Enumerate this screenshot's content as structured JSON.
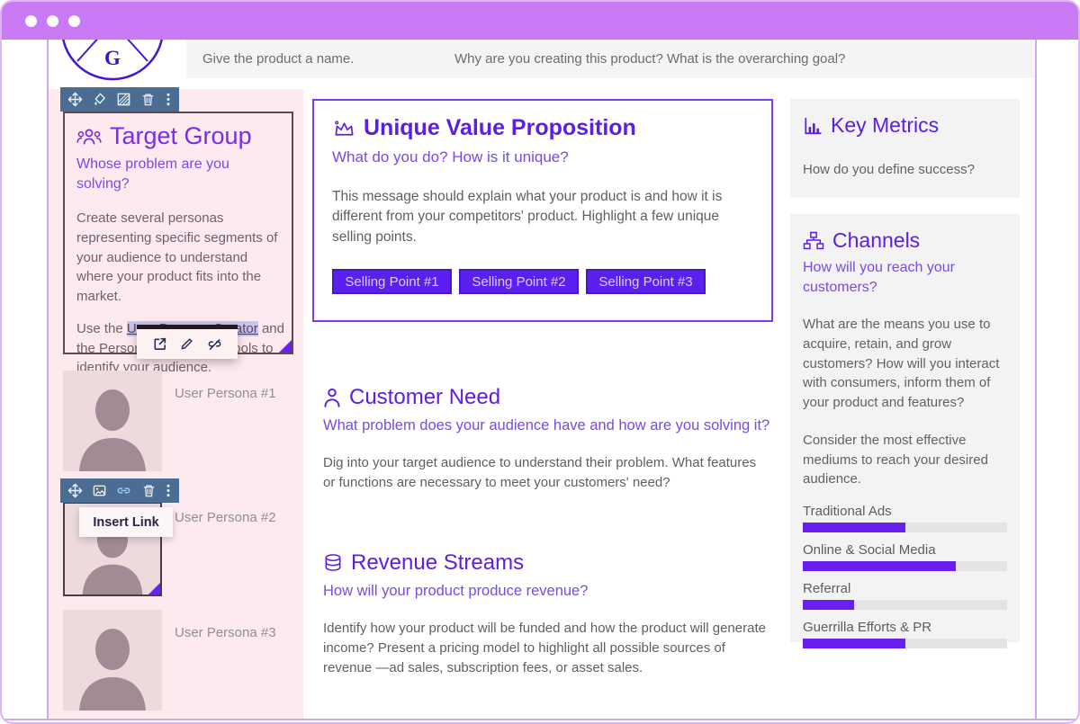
{
  "window": {
    "title_dots": 3
  },
  "header": {
    "logo_letter": "G",
    "product_name_placeholder": "Give the product a name.",
    "goal_placeholder": "Why are you creating this product? What is the overarching goal?"
  },
  "toolbars": {
    "section_toolbar_icons": [
      "move-icon",
      "fill-color-icon",
      "pattern-icon",
      "trash-icon",
      "more-icon"
    ],
    "image_toolbar_icons": [
      "move-icon",
      "image-icon",
      "link-icon",
      "trash-icon",
      "more-icon"
    ],
    "link_toolbar_icons": [
      "open-link-icon",
      "edit-link-icon",
      "unlink-icon"
    ],
    "insert_link_tooltip": "Insert Link"
  },
  "target_group": {
    "title": "Target Group",
    "subtitle": "Whose problem are you solving?",
    "paragraph1": "Create several personas representing specific segments of your audience to understand where your product fits into the market.",
    "paragraph2_prefix": "Use the ",
    "paragraph2_link": "User Persona Creator",
    "paragraph2_suffix": " and the Persona Comparison tools to identify your audience.",
    "personas": [
      "User Persona #1",
      "User Persona #2",
      "User Persona #3"
    ]
  },
  "unique_value_proposition": {
    "title": "Unique Value Proposition",
    "subtitle": "What do you do? How is it unique?",
    "body": "This message should explain what your product is and how it is different from your competitors' product. Highlight a few unique selling points.",
    "selling_points": [
      "Selling Point #1",
      "Selling Point #2",
      "Selling Point #3"
    ]
  },
  "customer_need": {
    "title": "Customer Need",
    "subtitle": "What problem does your audience have and how are you solving it?",
    "body": "Dig into your target audience to understand their problem. What features or functions are necessary to meet your customers' need?"
  },
  "revenue_streams": {
    "title": "Revenue Streams",
    "subtitle": "How will your product produce revenue?",
    "body": "Identify how your product will be funded and how the product will generate income? Present a pricing model to highlight all possible sources of revenue —ad sales, subscription fees, or asset sales."
  },
  "key_metrics": {
    "title": "Key Metrics",
    "body": "How do you define success?"
  },
  "channels": {
    "title": "Channels",
    "subtitle": "How will you reach your customers?",
    "body1": "What are the means you use to acquire, retain, and grow customers? How will you interact with consumers, inform them of your product and features?",
    "body2": "Consider the most effective mediums to reach your desired audience.",
    "chart": {
      "type": "bar",
      "categories": [
        "Traditional Ads",
        "Online & Social Media",
        "Referral",
        "Guerrilla Efforts & PR"
      ],
      "values": [
        50,
        75,
        25,
        50
      ],
      "max": 100
    }
  },
  "colors": {
    "titlebar": "#c879f3",
    "accent_heading": "#5e1ee2",
    "accent_subtitle": "#7b49e6",
    "bar_fill": "#6a1ff0",
    "toolbar": "#4b6c93",
    "panel_pink": "#fdeaee",
    "panel_gray": "#f3f3f4"
  }
}
